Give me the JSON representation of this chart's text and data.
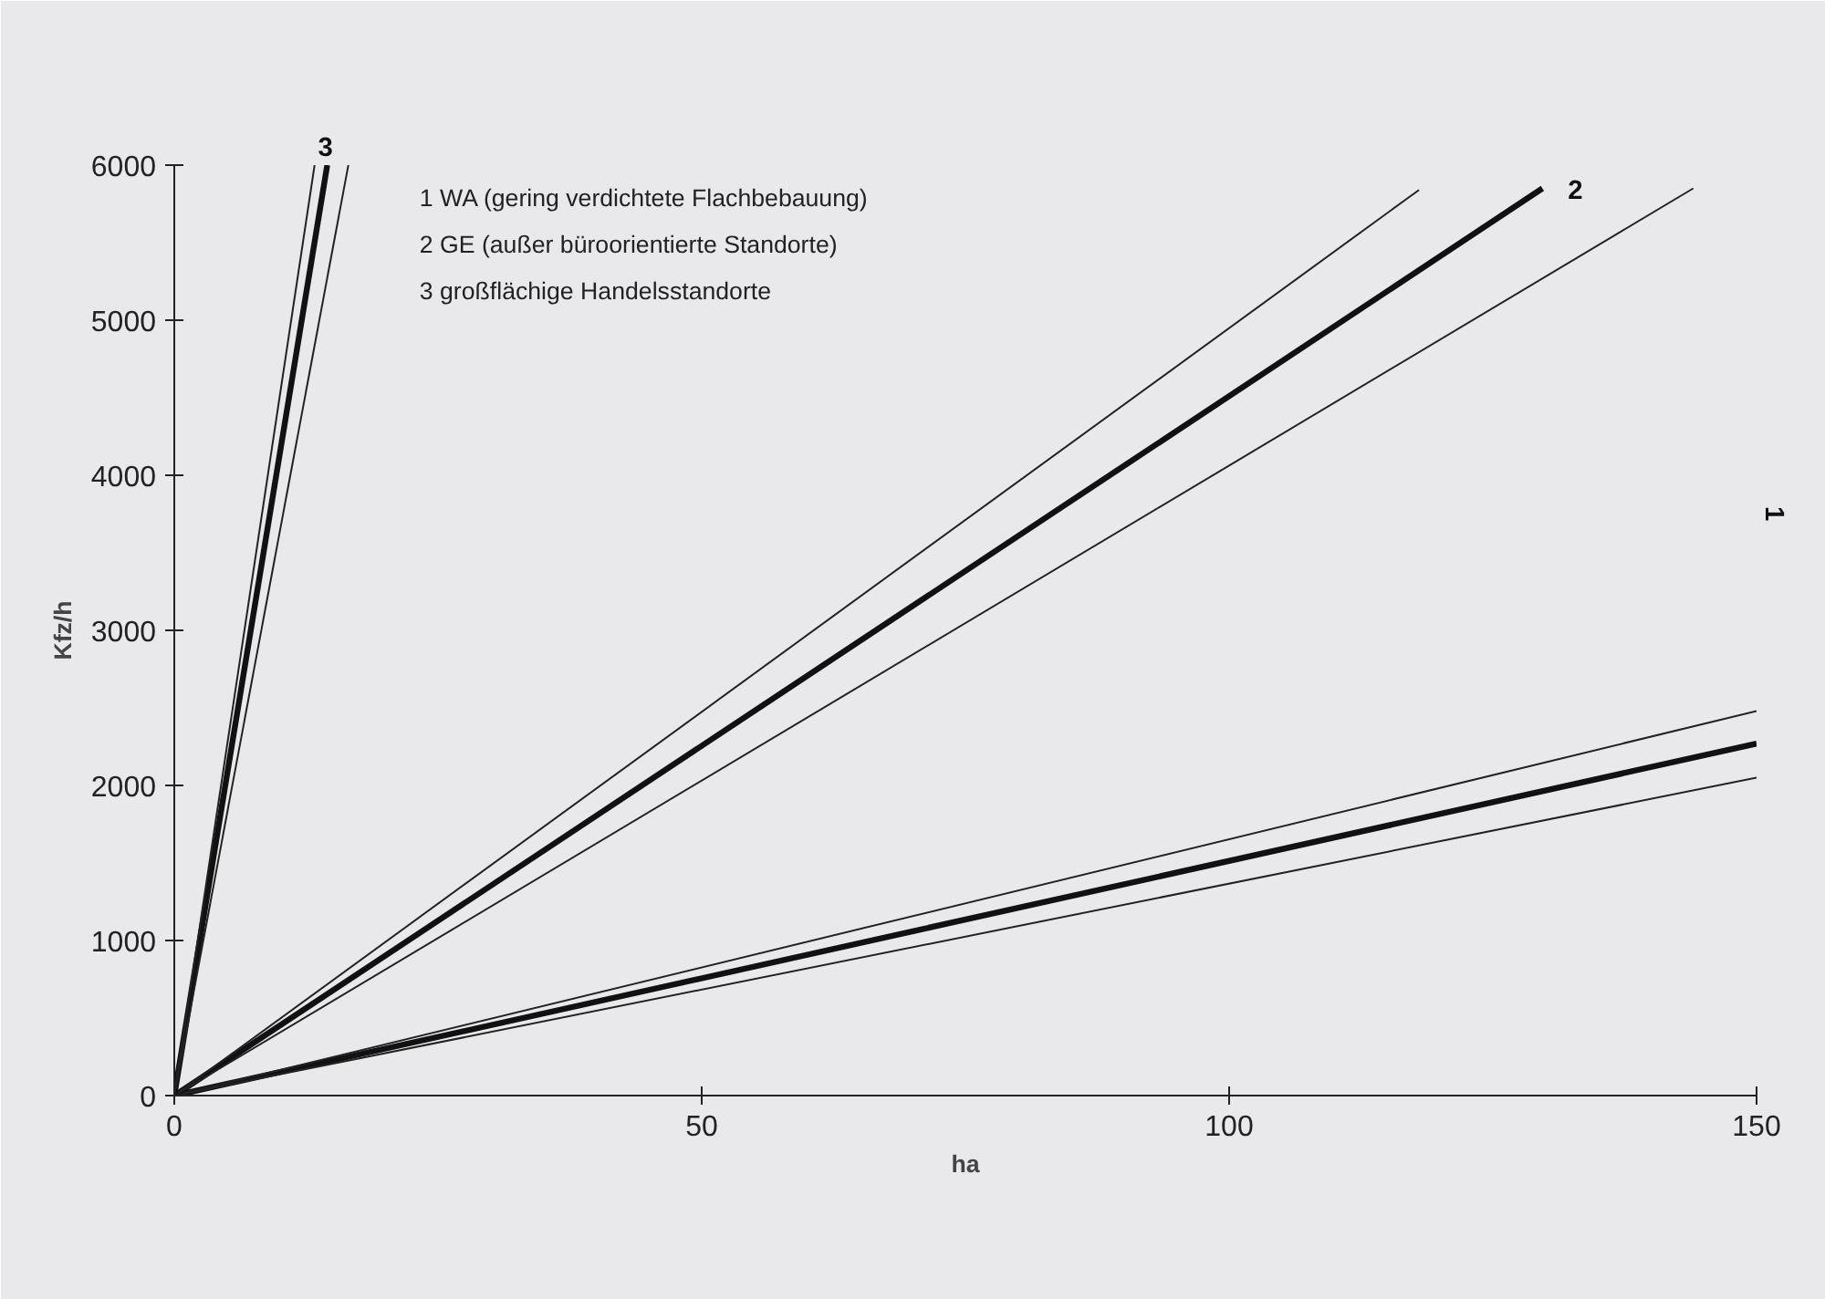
{
  "chart_data": {
    "type": "line",
    "xlabel": "ha",
    "ylabel": "Kfz/h",
    "xlim": [
      0,
      150
    ],
    "ylim": [
      0,
      6000
    ],
    "xticks": [
      0,
      50,
      100,
      150
    ],
    "yticks": [
      0,
      1000,
      2000,
      3000,
      4000,
      5000,
      6000
    ],
    "grid": false,
    "line_style": "solid",
    "annotations": [
      "1   WA  (gering verdichtete Flachbebauung)",
      "2   GE (außer büroorientierte Standorte)",
      "3   großflächige Handelsstandorte"
    ],
    "series": [
      {
        "name": "1",
        "color": "#111111",
        "x": [
          0,
          150
        ],
        "values": [
          0,
          2270
        ]
      },
      {
        "color": "#222222",
        "x": [
          0,
          150
        ],
        "values": [
          0,
          2480
        ]
      },
      {
        "color": "#222222",
        "x": [
          0,
          150
        ],
        "values": [
          0,
          2050
        ]
      },
      {
        "name": "2",
        "color": "#111111",
        "x": [
          0,
          129.7
        ],
        "values": [
          0,
          5850
        ]
      },
      {
        "color": "#222222",
        "x": [
          0,
          118
        ],
        "values": [
          0,
          5840
        ]
      },
      {
        "color": "#222222",
        "x": [
          0,
          144
        ],
        "values": [
          0,
          5850
        ]
      },
      {
        "name": "3",
        "color": "#111111",
        "x": [
          0,
          14.5
        ],
        "values": [
          0,
          6000
        ]
      },
      {
        "color": "#222222",
        "x": [
          0,
          13.3
        ],
        "values": [
          0,
          6000
        ]
      },
      {
        "color": "#222222",
        "x": [
          0,
          16.5
        ],
        "values": [
          0,
          6000
        ]
      }
    ]
  }
}
